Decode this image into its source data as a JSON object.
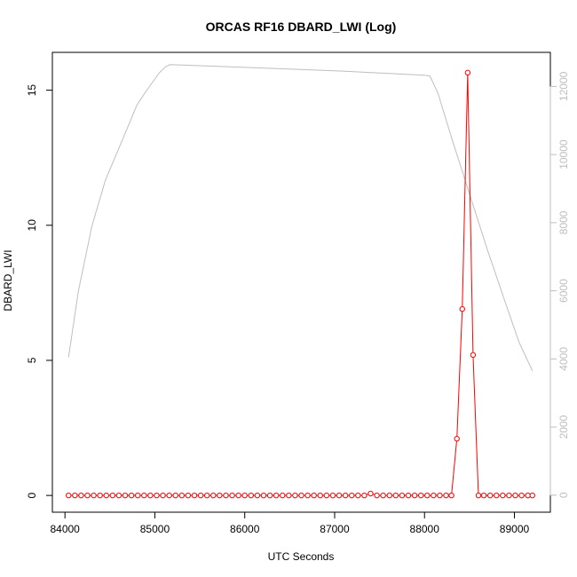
{
  "chart_data": {
    "type": "line",
    "title": "ORCAS RF16 DBARD_LWI (Log)",
    "xlabel": "UTC Seconds",
    "ylabel": "DBARD_LWI",
    "xlim": [
      83860,
      89400
    ],
    "ylim": [
      -0.62,
      16.4
    ],
    "y2lim": [
      -500,
      13000
    ],
    "x_ticks": [
      "84000",
      "85000",
      "86000",
      "87000",
      "88000",
      "89000"
    ],
    "y_ticks": [
      "0",
      "5",
      "10",
      "15"
    ],
    "y2_ticks": [
      "0",
      "2000",
      "4000",
      "6000",
      "8000",
      "10000",
      "12000"
    ],
    "colors": {
      "series": "#ff0000",
      "secondary": "#bebebe",
      "axis": "#000000"
    },
    "series": [
      {
        "style": "line-with-open-circles",
        "color": "#ff0000",
        "x": [
          84040,
          84110,
          84180,
          84250,
          84320,
          84390,
          84460,
          84530,
          84600,
          84670,
          84740,
          84810,
          84880,
          84950,
          85020,
          85090,
          85160,
          85230,
          85300,
          85370,
          85440,
          85510,
          85580,
          85650,
          85720,
          85790,
          85860,
          85930,
          86000,
          86070,
          86140,
          86210,
          86280,
          86350,
          86420,
          86490,
          86560,
          86630,
          86700,
          86770,
          86840,
          86910,
          86980,
          87050,
          87120,
          87190,
          87260,
          87330,
          87400,
          87470,
          87540,
          87610,
          87680,
          87750,
          87820,
          87890,
          87960,
          88030,
          88100,
          88170,
          88240,
          88300,
          88360,
          88420,
          88480,
          88540,
          88600,
          88660,
          88730,
          88800,
          88870,
          88940,
          89010,
          89080,
          89150,
          89200
        ],
        "y": [
          0,
          0,
          0,
          0,
          0,
          0,
          0,
          0,
          0,
          0,
          0,
          0,
          0,
          0,
          0,
          0,
          0,
          0,
          0,
          0,
          0,
          0,
          0,
          0,
          0,
          0,
          0,
          0,
          0,
          0,
          0,
          0,
          0,
          0,
          0,
          0,
          0,
          0,
          0,
          0,
          0,
          0,
          0,
          0,
          0,
          0,
          0,
          0,
          0.07,
          0,
          0,
          0,
          0,
          0,
          0,
          0,
          0,
          0,
          0,
          0,
          0,
          0,
          2.1,
          6.9,
          15.65,
          5.2,
          0,
          0,
          0,
          0,
          0,
          0,
          0,
          0,
          0,
          0
        ]
      },
      {
        "style": "line",
        "axis": "right",
        "color": "#bebebe",
        "x": [
          84040,
          84150,
          84300,
          84450,
          84650,
          84800,
          84900,
          85050,
          85120,
          85170,
          86000,
          87000,
          88000,
          88060,
          88150,
          88300,
          88500,
          88700,
          88900,
          89050,
          89200
        ],
        "y": [
          4050,
          6000,
          7900,
          9250,
          10500,
          11450,
          11850,
          12400,
          12580,
          12640,
          12560,
          12460,
          12330,
          12310,
          11800,
          10500,
          8850,
          7200,
          5650,
          4500,
          3650
        ]
      }
    ]
  }
}
